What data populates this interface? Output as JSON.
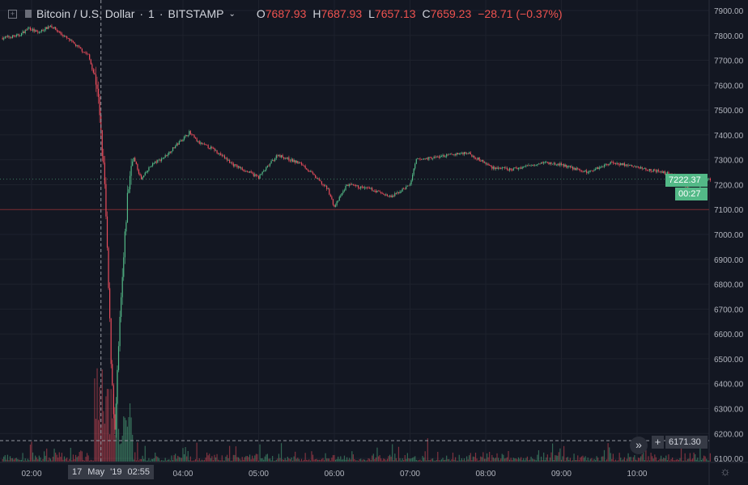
{
  "header": {
    "symbol": "Bitcoin / U.S. Dollar",
    "interval": "1",
    "exchange": "BITSTAMP",
    "open_label": "O",
    "open": "7687.93",
    "high_label": "H",
    "high": "7687.93",
    "low_label": "L",
    "low": "7657.13",
    "close_label": "C",
    "close": "7659.23",
    "change": "−28.71 (−0.37%)"
  },
  "price_tag": "7222.37",
  "countdown": "00:27",
  "crosshair_price": "6171.30",
  "crosshair_time": "17 May '19  02:55",
  "colors": {
    "up": "#53b987",
    "down": "#eb4d5c",
    "background": "#131722",
    "grid": "#1e222d",
    "hline": "#7a2a30"
  },
  "icons": [
    "add-symbol-icon",
    "flag-icon",
    "chevron-down-icon",
    "scroll-to-realtime-icon",
    "settings-icon"
  ],
  "chart_data": {
    "type": "candlestick",
    "interval_minutes": 1,
    "y_ticks": [
      7900,
      7800,
      7700,
      7600,
      7500,
      7400,
      7300,
      7200,
      7100,
      7000,
      6900,
      6800,
      6700,
      6600,
      6500,
      6400,
      6300,
      6200,
      6100
    ],
    "x_ticks": [
      "02:00",
      "04:00",
      "05:00",
      "06:00",
      "07:00",
      "08:00",
      "09:00",
      "10:00"
    ],
    "horizontal_line": 7100,
    "crosshair": {
      "time": "02:55",
      "price": 6171.3
    },
    "price_path": [
      [
        "01:37",
        7790
      ],
      [
        "01:50",
        7800
      ],
      [
        "01:58",
        7830
      ],
      [
        "02:05",
        7810
      ],
      [
        "02:15",
        7840
      ],
      [
        "02:25",
        7800
      ],
      [
        "02:35",
        7760
      ],
      [
        "02:45",
        7720
      ],
      [
        "02:52",
        7600
      ],
      [
        "02:58",
        7200
      ],
      [
        "03:03",
        6500
      ],
      [
        "03:06",
        6200
      ],
      [
        "03:10",
        6650
      ],
      [
        "03:13",
        6900
      ],
      [
        "03:16",
        7150
      ],
      [
        "03:20",
        7320
      ],
      [
        "03:27",
        7220
      ],
      [
        "03:35",
        7280
      ],
      [
        "03:45",
        7310
      ],
      [
        "04:05",
        7410
      ],
      [
        "04:12",
        7370
      ],
      [
        "04:25",
        7340
      ],
      [
        "04:40",
        7280
      ],
      [
        "05:00",
        7230
      ],
      [
        "05:15",
        7320
      ],
      [
        "05:35",
        7280
      ],
      [
        "05:55",
        7180
      ],
      [
        "06:00",
        7110
      ],
      [
        "06:10",
        7200
      ],
      [
        "06:30",
        7180
      ],
      [
        "06:45",
        7150
      ],
      [
        "07:00",
        7200
      ],
      [
        "07:05",
        7300
      ],
      [
        "07:20",
        7310
      ],
      [
        "07:45",
        7330
      ],
      [
        "08:05",
        7270
      ],
      [
        "08:20",
        7260
      ],
      [
        "08:45",
        7290
      ],
      [
        "09:00",
        7280
      ],
      [
        "09:20",
        7250
      ],
      [
        "09:40",
        7290
      ],
      [
        "10:00",
        7270
      ],
      [
        "10:20",
        7250
      ],
      [
        "10:30",
        7240
      ],
      [
        "10:45",
        7160
      ],
      [
        "10:52",
        7210
      ],
      [
        "10:58",
        7222.37
      ]
    ]
  }
}
